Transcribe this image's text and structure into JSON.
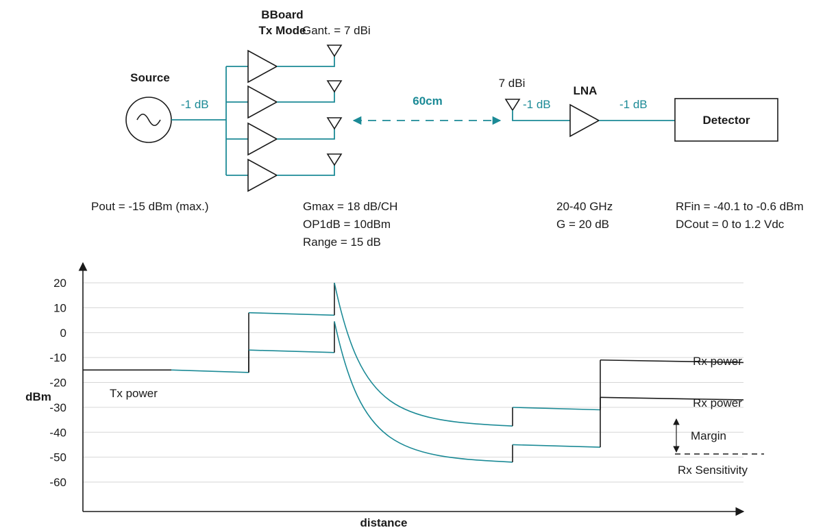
{
  "colors": {
    "teal": "#1b8a96",
    "ink": "#1a1a1a"
  },
  "block": {
    "bboard_line1": "BBoard",
    "bboard_line2": "Tx Mode",
    "gant": "Gant. = 7 dBi",
    "source": "Source",
    "src_loss": "-1 dB",
    "distance": "60cm",
    "rx_ant": "7 dBi",
    "ant_loss": "-1 dB",
    "lna": "LNA",
    "lna_loss": "-1 dB",
    "detector": "Detector",
    "source_spec": "Pout = -15 dBm (max.)",
    "bboard_spec": [
      "Gmax = 18 dB/CH",
      "OP1dB = 10dBm",
      "Range = 15 dB"
    ],
    "lna_spec": [
      "20-40 GHz",
      "G = 20 dB"
    ],
    "det_spec": [
      "RFin = -40.1 to -0.6 dBm",
      "DCout = 0 to 1.2 Vdc"
    ]
  },
  "chart_data": {
    "type": "line",
    "ylabel": "dBm",
    "xlabel": "distance",
    "yticks": [
      "20",
      "10",
      "0",
      "-10",
      "-20",
      "-30",
      "-40",
      "-50",
      "-60"
    ],
    "ylim": [
      -60,
      20
    ],
    "grid": true,
    "series": [
      {
        "segment": "tx",
        "points": [
          [
            0,
            -15
          ],
          [
            1,
            -15
          ],
          [
            2,
            -16
          ]
        ]
      },
      {
        "segment": "upper",
        "points": [
          [
            2,
            -16
          ],
          [
            2,
            8
          ],
          [
            3,
            7
          ],
          [
            3,
            20
          ],
          [
            4,
            -37.5
          ],
          [
            4,
            -30
          ],
          [
            5,
            -31
          ],
          [
            5,
            -11
          ],
          [
            6,
            -12
          ]
        ]
      },
      {
        "segment": "lower",
        "points": [
          [
            2,
            -16
          ],
          [
            2,
            -7
          ],
          [
            3,
            -8
          ],
          [
            3,
            4.5
          ],
          [
            4,
            -52
          ],
          [
            4,
            -45
          ],
          [
            5,
            -46
          ],
          [
            5,
            -26
          ],
          [
            6,
            -27
          ]
        ]
      }
    ],
    "annotations": {
      "tx_power": "Tx power",
      "rx_power_upper": "Rx power",
      "rx_power_lower": "Rx power",
      "margin": "Margin",
      "rx_sensitivity": "Rx Sensitivity"
    }
  }
}
